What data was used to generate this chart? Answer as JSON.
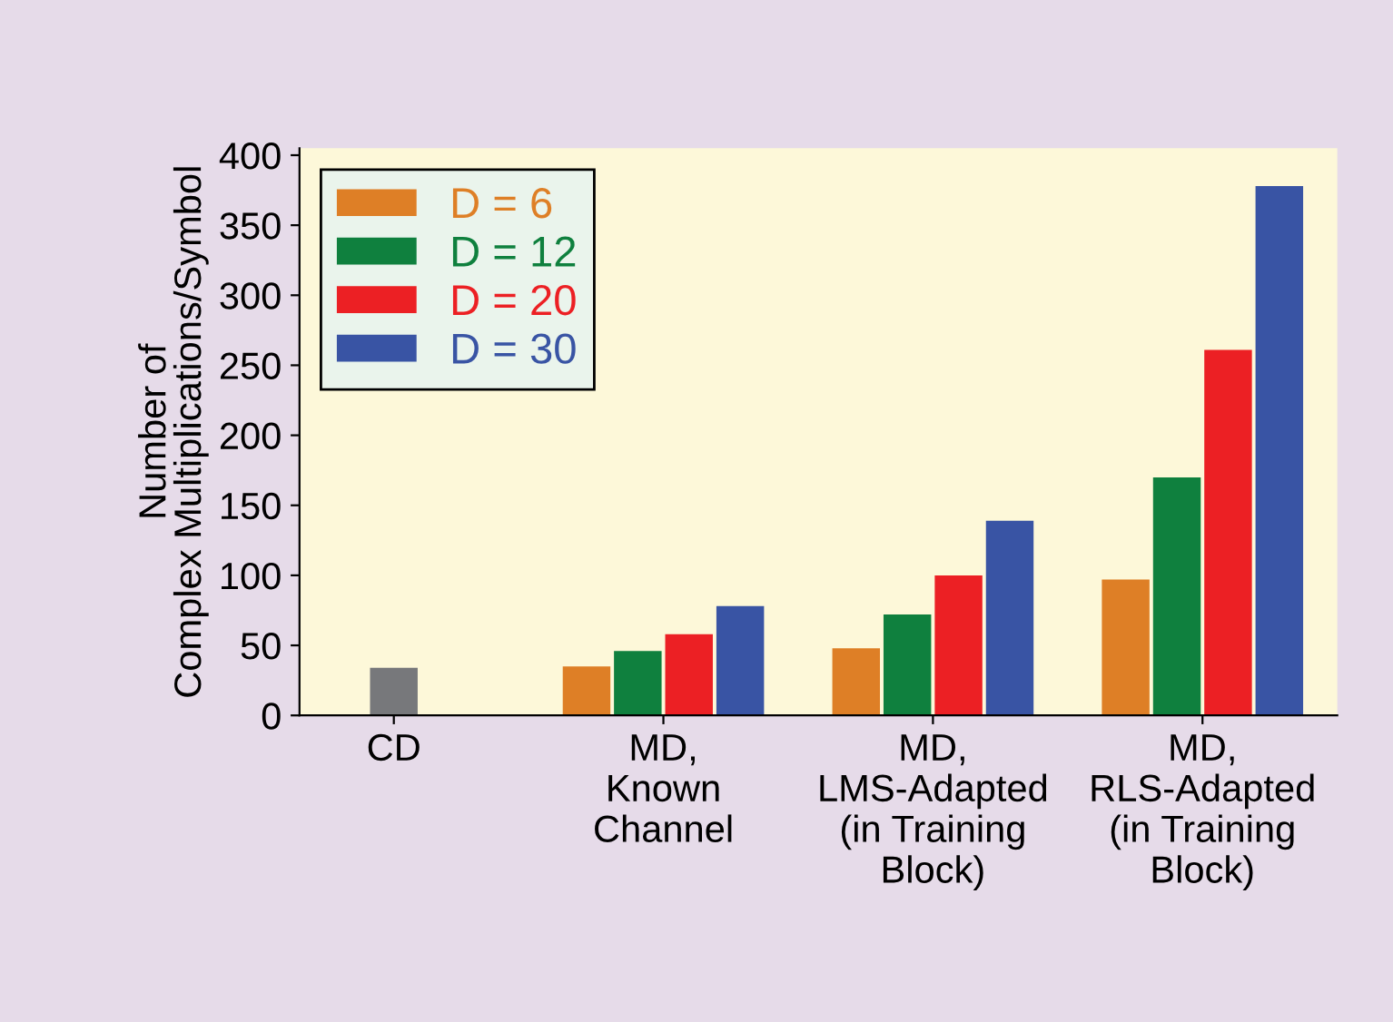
{
  "chart_data": {
    "type": "bar",
    "ylabel": "Number of\nComplex Multiplications/Symbol",
    "categories": [
      "CD",
      "MD,\nKnown\nChannel",
      "MD,\nLMS-Adapted\n(in Training\nBlock)",
      "MD,\nRLS-Adapted\n(in Training\nBlock)"
    ],
    "series": [
      {
        "color": "#77787b",
        "values": [
          34,
          null,
          null,
          null
        ]
      },
      {
        "name": "D = 6",
        "color": "#de7f26",
        "values": [
          null,
          35,
          48,
          97
        ]
      },
      {
        "name": "D = 12",
        "color": "#0f803e",
        "values": [
          null,
          46,
          72,
          170
        ]
      },
      {
        "name": "D = 20",
        "color": "#ec2024",
        "values": [
          null,
          58,
          100,
          261
        ]
      },
      {
        "name": "D = 30",
        "color": "#3954a4",
        "values": [
          null,
          78,
          139,
          378
        ]
      }
    ],
    "ylim": [
      0,
      405
    ],
    "yticks": [
      0,
      50,
      100,
      150,
      200,
      250,
      300,
      350,
      400
    ],
    "grid": false,
    "legend": "top left"
  }
}
